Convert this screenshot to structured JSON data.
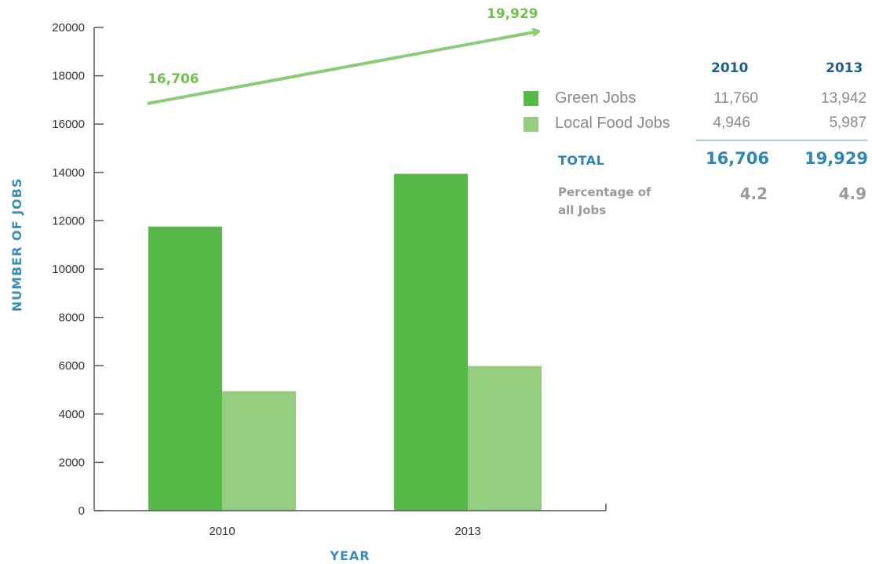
{
  "chart_data": {
    "type": "bar",
    "categories": [
      "2010",
      "2013"
    ],
    "series": [
      {
        "name": "Green Jobs",
        "values": [
          11760,
          13942
        ],
        "color": "#57b947"
      },
      {
        "name": "Local Food Jobs",
        "values": [
          4946,
          5987
        ],
        "color": "#95cd80"
      }
    ],
    "xlabel": "YEAR",
    "ylabel": "NUMBER OF JOBS",
    "ylim": [
      0,
      20000
    ],
    "yticks": [
      "0",
      "2000",
      "4000",
      "6000",
      "8000",
      "10000",
      "12000",
      "14000",
      "16000",
      "18000",
      "20000"
    ],
    "grid": false,
    "trend": {
      "start_label": "16,706",
      "end_label": "19,929",
      "values": [
        16706,
        19929
      ],
      "color": "#8ccc78"
    }
  },
  "summary_table": {
    "years": [
      "2010",
      "2013"
    ],
    "rows": [
      {
        "label": "Green Jobs",
        "values": [
          "11,760",
          "13,942"
        ],
        "color": "#57b947"
      },
      {
        "label": "Local Food Jobs",
        "values": [
          "4,946",
          "5,987"
        ],
        "color": "#95cd80"
      }
    ],
    "total_label": "TOTAL",
    "totals": [
      "16,706",
      "19,929"
    ],
    "percentage_label_line1": "Percentage of",
    "percentage_label_line2": "all Jobs",
    "percentages": [
      "4.2",
      "4.9"
    ]
  }
}
